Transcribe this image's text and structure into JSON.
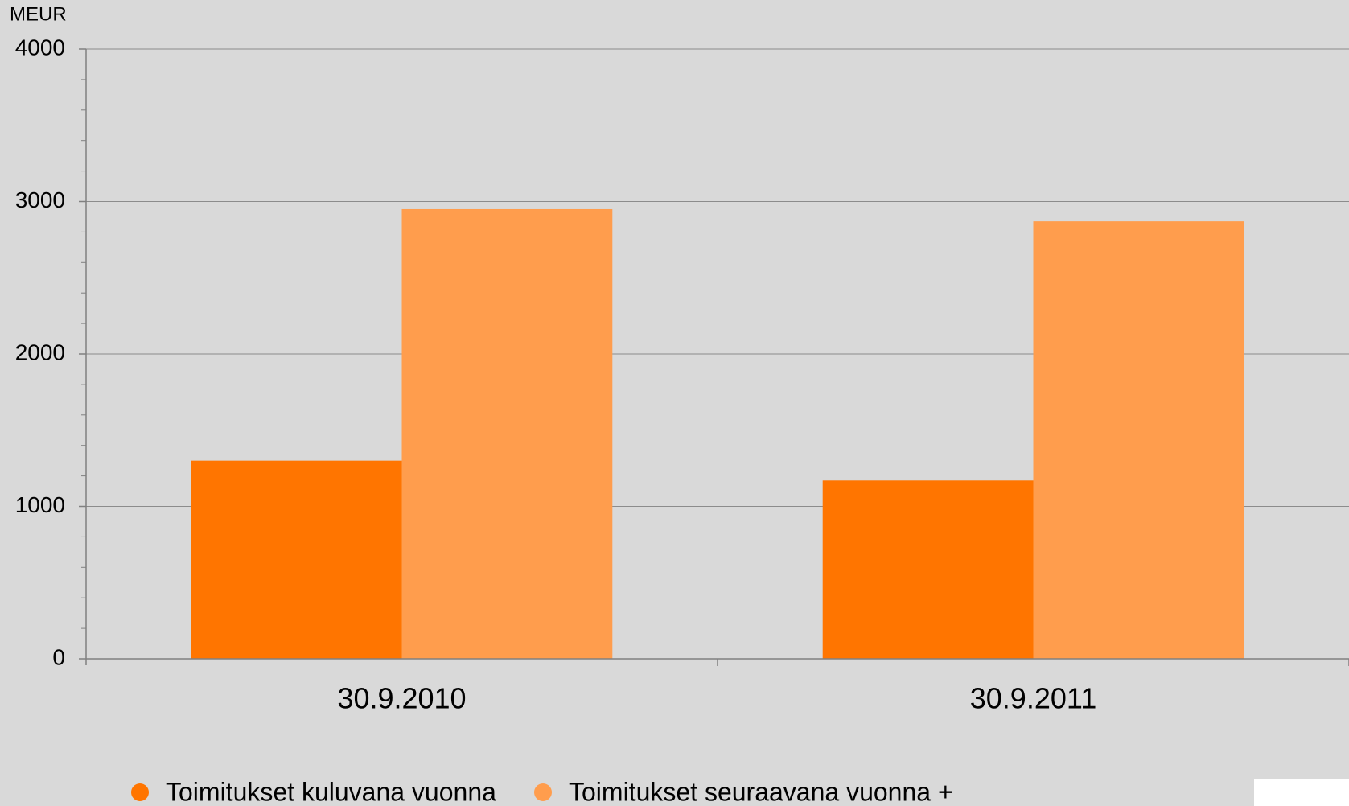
{
  "chart_data": {
    "type": "bar",
    "y_unit": "MEUR",
    "categories": [
      "30.9.2010",
      "30.9.2011"
    ],
    "series": [
      {
        "name": "Toimitukset kuluvana vuonna",
        "color": "#ff7500",
        "values": [
          1300,
          1170
        ]
      },
      {
        "name": "Toimitukset seuraavana vuonna +",
        "color": "#ff9d4d",
        "values": [
          2950,
          2870
        ]
      }
    ],
    "ylim": [
      0,
      4000
    ],
    "yticks": [
      0,
      1000,
      2000,
      3000,
      4000
    ],
    "minor_tick_interval": 200,
    "grid": true
  }
}
